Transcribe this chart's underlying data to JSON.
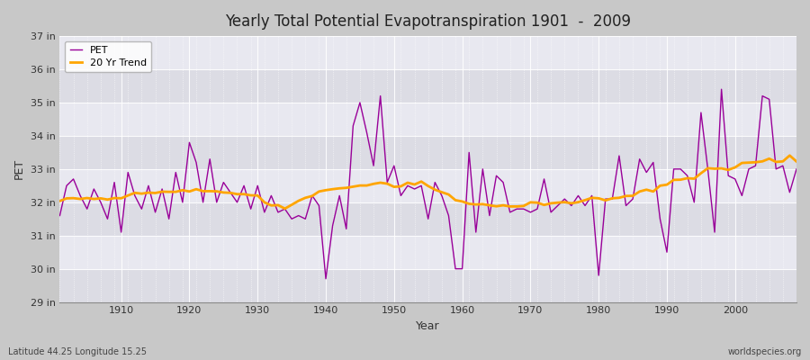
{
  "title": "Yearly Total Potential Evapotranspiration 1901  -  2009",
  "xlabel": "Year",
  "ylabel": "PET",
  "subtitle": "Latitude 44.25 Longitude 15.25",
  "watermark": "worldspecies.org",
  "pet_color": "#990099",
  "trend_color": "#FFA500",
  "fig_bg_color": "#D0D0D0",
  "plot_bg_color": "#E8E8EC",
  "band_color_light": "#EAEAEE",
  "band_color_dark": "#DADADF",
  "ylim": [
    29,
    37
  ],
  "yticks": [
    29,
    30,
    31,
    32,
    33,
    34,
    35,
    36,
    37
  ],
  "ytick_labels": [
    "29 in",
    "30 in",
    "31 in",
    "32 in",
    "33 in",
    "34 in",
    "35 in",
    "36 in",
    "37 in"
  ],
  "xticks": [
    1910,
    1920,
    1930,
    1940,
    1950,
    1960,
    1970,
    1980,
    1990,
    2000
  ],
  "xtick_labels": [
    "1910",
    "1920",
    "1930",
    "1940",
    "1950",
    "1960",
    "1970",
    "1980",
    "1990",
    "2000"
  ],
  "xlim": [
    1901,
    2009
  ],
  "years": [
    1901,
    1902,
    1903,
    1904,
    1905,
    1906,
    1907,
    1908,
    1909,
    1910,
    1911,
    1912,
    1913,
    1914,
    1915,
    1916,
    1917,
    1918,
    1919,
    1920,
    1921,
    1922,
    1923,
    1924,
    1925,
    1926,
    1927,
    1928,
    1929,
    1930,
    1931,
    1932,
    1933,
    1934,
    1935,
    1936,
    1937,
    1938,
    1939,
    1940,
    1941,
    1942,
    1943,
    1944,
    1945,
    1946,
    1947,
    1948,
    1949,
    1950,
    1951,
    1952,
    1953,
    1954,
    1955,
    1956,
    1957,
    1958,
    1959,
    1960,
    1961,
    1962,
    1963,
    1964,
    1965,
    1966,
    1967,
    1968,
    1969,
    1970,
    1971,
    1972,
    1973,
    1974,
    1975,
    1976,
    1977,
    1978,
    1979,
    1980,
    1981,
    1982,
    1983,
    1984,
    1985,
    1986,
    1987,
    1988,
    1989,
    1990,
    1991,
    1992,
    1993,
    1994,
    1995,
    1996,
    1997,
    1998,
    1999,
    2000,
    2001,
    2002,
    2003,
    2004,
    2005,
    2006,
    2007,
    2008,
    2009
  ],
  "pet_values": [
    31.6,
    32.5,
    32.7,
    32.2,
    31.8,
    32.4,
    32.0,
    31.5,
    32.6,
    31.1,
    32.9,
    32.2,
    31.8,
    32.5,
    31.7,
    32.4,
    31.5,
    32.9,
    32.0,
    33.8,
    33.2,
    32.0,
    33.3,
    32.0,
    32.6,
    32.3,
    32.0,
    32.5,
    31.8,
    32.5,
    31.7,
    32.2,
    31.7,
    31.8,
    31.5,
    31.6,
    31.5,
    32.2,
    31.9,
    29.7,
    31.3,
    32.2,
    31.2,
    34.3,
    35.0,
    34.1,
    33.1,
    35.2,
    32.6,
    33.1,
    32.2,
    32.5,
    32.4,
    32.5,
    31.5,
    32.6,
    32.2,
    31.6,
    30.0,
    30.0,
    33.5,
    31.1,
    33.0,
    31.6,
    32.8,
    32.6,
    31.7,
    31.8,
    31.8,
    31.7,
    31.8,
    32.7,
    31.7,
    31.9,
    32.1,
    31.9,
    32.2,
    31.9,
    32.2,
    29.8,
    32.1,
    32.1,
    33.4,
    31.9,
    32.1,
    33.3,
    32.9,
    33.2,
    31.5,
    30.5,
    33.0,
    33.0,
    32.8,
    32.0,
    34.7,
    33.0,
    31.1,
    35.4,
    32.8,
    32.7,
    32.2,
    33.0,
    33.1,
    35.2,
    35.1,
    33.0,
    33.1,
    32.3,
    33.0
  ]
}
